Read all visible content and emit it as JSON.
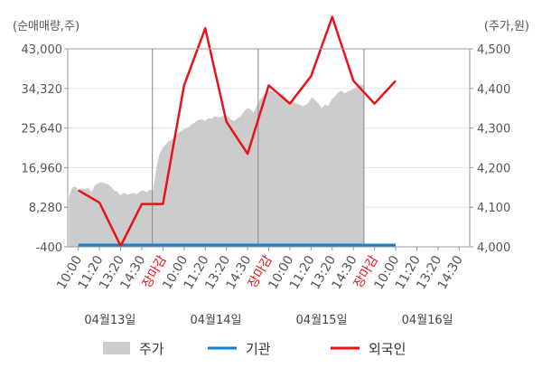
{
  "chart_data": {
    "type": "line",
    "y_left_label": "(순매매량,주)",
    "y_right_label": "(주가,원)",
    "y_left_ticks": [
      "43,000",
      "34,320",
      "25,640",
      "16,960",
      "8,280",
      "-400"
    ],
    "y_right_ticks": [
      "4,500",
      "4,400",
      "4,300",
      "4,200",
      "4,100",
      "4,000"
    ],
    "ylim_left": [
      -400,
      43000
    ],
    "ylim_right": [
      4000,
      4500
    ],
    "x_tick_labels": [
      "10:00",
      "11:20",
      "13:20",
      "14:30",
      "장마감",
      "10:00",
      "11:20",
      "13:20",
      "14:30",
      "장마감",
      "10:00",
      "11:20",
      "13:20",
      "14:30",
      "장마감",
      "10:00",
      "11:20",
      "13:20",
      "14:30"
    ],
    "date_labels": [
      "04월13일",
      "04월14일",
      "04월15일",
      "04월16일"
    ],
    "legend": [
      "주가",
      "기관",
      "외국인"
    ],
    "colors": {
      "price": "#cccccc",
      "institution": "#1a7fcf",
      "foreign": "#e8131a",
      "close_label": "#e8131a",
      "grid": "#aaaaaa"
    },
    "series": [
      {
        "name": "주가",
        "axis": "right",
        "type": "area",
        "values": [
          4125,
          4150,
          4152,
          4144,
          4148,
          4145,
          4150,
          4138,
          4155,
          4160,
          4163,
          4161,
          4158,
          4152,
          4142,
          4139,
          4130,
          4137,
          4132,
          4134,
          4136,
          4133,
          4140,
          4143,
          4138,
          4145,
          4141,
          4200,
          4235,
          4250,
          4260,
          4268,
          4272,
          4280,
          4290,
          4294,
          4299,
          4302,
          4310,
          4315,
          4320,
          4322,
          4318,
          4325,
          4323,
          4330,
          4327,
          4328,
          4333,
          4330,
          4320,
          4318,
          4325,
          4330,
          4342,
          4350,
          4348,
          4338,
          4358,
          4372,
          4382,
          4388,
          4395,
          4393,
          4385,
          4380,
          4388,
          4375,
          4368,
          4370,
          4362,
          4360,
          4355,
          4358,
          4365,
          4378,
          4370,
          4362,
          4350,
          4360,
          4355,
          4372,
          4380,
          4390,
          4395,
          4388,
          4392,
          4396,
          4400,
          4405,
          4410,
          4408
        ]
      },
      {
        "name": "기관",
        "axis": "left",
        "type": "line",
        "values": [
          0,
          0
        ]
      },
      {
        "name": "외국인",
        "axis": "left",
        "type": "line",
        "values": [
          12000,
          9300,
          -200,
          9000,
          9000,
          35000,
          47500,
          27000,
          20000,
          35000,
          31000,
          37000,
          50000,
          36000,
          31000,
          36000
        ]
      }
    ]
  }
}
